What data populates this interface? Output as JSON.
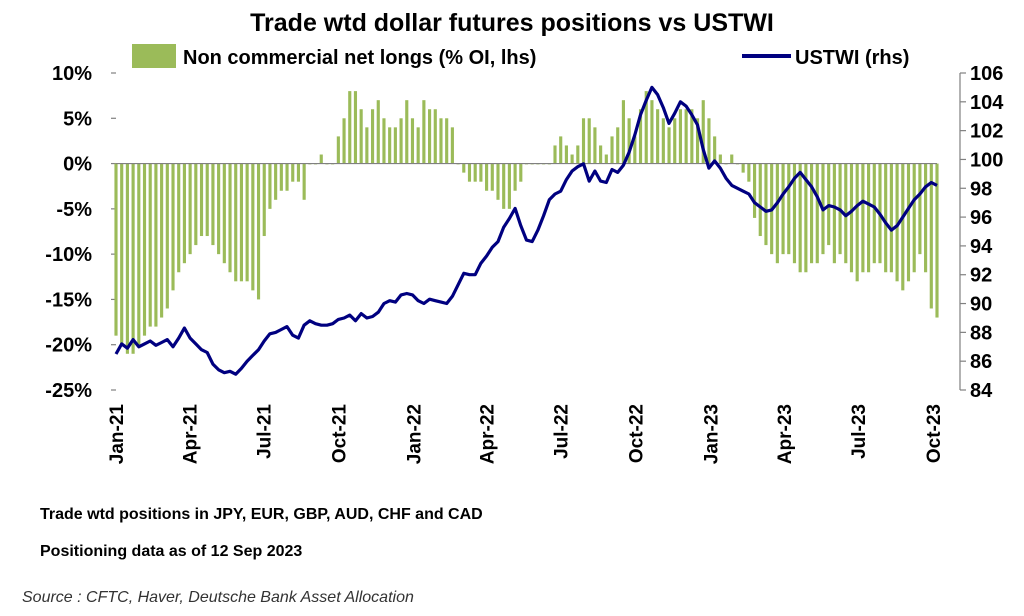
{
  "chart_data": {
    "type": "bar+line",
    "title": "Trade wtd dollar futures positions  vs USTWI",
    "legend": [
      {
        "name": "Non commercial net longs (% OI, lhs)",
        "kind": "bar",
        "color": "#9bbb59"
      },
      {
        "name": "USTWI (rhs)",
        "kind": "line",
        "color": "#000080"
      }
    ],
    "left_axis": {
      "min": -25,
      "max": 10,
      "ticks": [
        10,
        5,
        0,
        -5,
        -10,
        -15,
        -20,
        -25
      ],
      "tick_labels": [
        "10%",
        "5%",
        "0%",
        "-5%",
        "-10%",
        "-15%",
        "-20%",
        "-25%"
      ]
    },
    "right_axis": {
      "min": 84,
      "max": 106,
      "ticks": [
        106,
        104,
        102,
        100,
        98,
        96,
        94,
        92,
        90,
        88,
        86,
        84
      ],
      "tick_labels": [
        "106",
        "104",
        "102",
        "100",
        "98",
        "96",
        "94",
        "92",
        "90",
        "88",
        "86",
        "84"
      ]
    },
    "x_axis": {
      "start": "2021-01-01",
      "end": "2023-10-31",
      "num_weeks": 145,
      "tick_labels": [
        "Jan-21",
        "Apr-21",
        "Jul-21",
        "Oct-21",
        "Jan-22",
        "Apr-22",
        "Jul-22",
        "Oct-22",
        "Jan-23",
        "Apr-23",
        "Jul-23",
        "Oct-23"
      ],
      "tick_weeks": [
        0,
        12.86,
        25.86,
        39.0,
        52.14,
        65.0,
        78.0,
        91.14,
        104.29,
        117.14,
        130.14,
        143.29
      ]
    },
    "positions_series": {
      "name": "Non commercial net longs (% OI, lhs)",
      "unit": "% OI",
      "values": [
        -19,
        -20,
        -21,
        -21,
        -20,
        -19,
        -18,
        -18,
        -17,
        -16,
        -14,
        -12,
        -11,
        -10,
        -9,
        -8,
        -8,
        -9,
        -10,
        -11,
        -12,
        -13,
        -13,
        -13,
        -14,
        -15,
        -8,
        -5,
        -4,
        -3,
        -3,
        -2,
        -2,
        -4,
        0,
        0,
        1,
        0,
        0,
        3,
        5,
        8,
        8,
        6,
        4,
        6,
        7,
        5,
        4,
        4,
        5,
        7,
        5,
        4,
        7,
        6,
        6,
        5,
        5,
        4,
        0,
        -1,
        -2,
        -2,
        -2,
        -3,
        -3,
        -4,
        -5,
        -5,
        -3,
        -2,
        0,
        0,
        0,
        0,
        0,
        2,
        3,
        2,
        1,
        2,
        5,
        5,
        4,
        2,
        1,
        3,
        4,
        7,
        5,
        3,
        6,
        8,
        7,
        6,
        5,
        4,
        5,
        6,
        6,
        6,
        5,
        7,
        5,
        3,
        1,
        0,
        1,
        0,
        -1,
        -2,
        -6,
        -8,
        -9,
        -10,
        -11,
        -10,
        -10,
        -11,
        -12,
        -12,
        -11,
        -11,
        -10,
        -9,
        -11,
        -10,
        -11,
        -12,
        -13,
        -12,
        -12,
        -11,
        -11,
        -12,
        -12,
        -13,
        -14,
        -13,
        -12,
        -10,
        -12,
        -16,
        -17
      ]
    },
    "ustwi_series": {
      "name": "USTWI (rhs)",
      "values": [
        86.5,
        87.2,
        86.9,
        87.5,
        87.0,
        87.2,
        87.4,
        87.1,
        87.3,
        87.5,
        87.0,
        87.6,
        88.3,
        87.6,
        87.2,
        86.8,
        86.6,
        85.8,
        85.4,
        85.2,
        85.3,
        85.1,
        85.5,
        86.0,
        86.4,
        86.8,
        87.4,
        87.9,
        88.0,
        88.2,
        88.4,
        87.8,
        87.6,
        88.5,
        88.8,
        88.6,
        88.5,
        88.5,
        88.6,
        88.9,
        89.0,
        89.2,
        88.8,
        89.3,
        89.0,
        89.1,
        89.4,
        90.0,
        90.2,
        90.1,
        90.6,
        90.7,
        90.6,
        90.2,
        90.0,
        90.3,
        90.2,
        90.1,
        90.0,
        90.5,
        91.3,
        92.1,
        92.0,
        92.0,
        92.8,
        93.3,
        93.9,
        94.3,
        95.3,
        95.9,
        96.6,
        95.4,
        94.4,
        94.3,
        95.1,
        96.1,
        97.2,
        97.6,
        97.8,
        98.6,
        99.2,
        99.5,
        99.7,
        98.5,
        99.2,
        98.5,
        98.4,
        99.3,
        99.1,
        99.6,
        100.5,
        101.7,
        103.1,
        104.1,
        105.0,
        104.5,
        103.6,
        102.5,
        103.2,
        104.0,
        103.7,
        103.1,
        102.4,
        100.7,
        99.4,
        99.9,
        99.4,
        98.7,
        98.2,
        98.0,
        97.8,
        97.6,
        97.0,
        96.7,
        96.4,
        96.5,
        97.0,
        97.6,
        98.1,
        98.7,
        99.1,
        98.6,
        98.1,
        97.4,
        96.5,
        96.8,
        96.7,
        96.5,
        96.1,
        96.4,
        96.8,
        97.1,
        96.9,
        96.7,
        96.2,
        95.6,
        95.1,
        95.4,
        96.0,
        96.6,
        97.2,
        97.6,
        98.1,
        98.4,
        98.2
      ]
    },
    "notes": [
      "Trade wtd positions in JPY, EUR, GBP, AUD, CHF and CAD",
      "Positioning data as of 12 Sep 2023"
    ],
    "source": "Source : CFTC, Haver, Deutsche Bank Asset Allocation"
  }
}
